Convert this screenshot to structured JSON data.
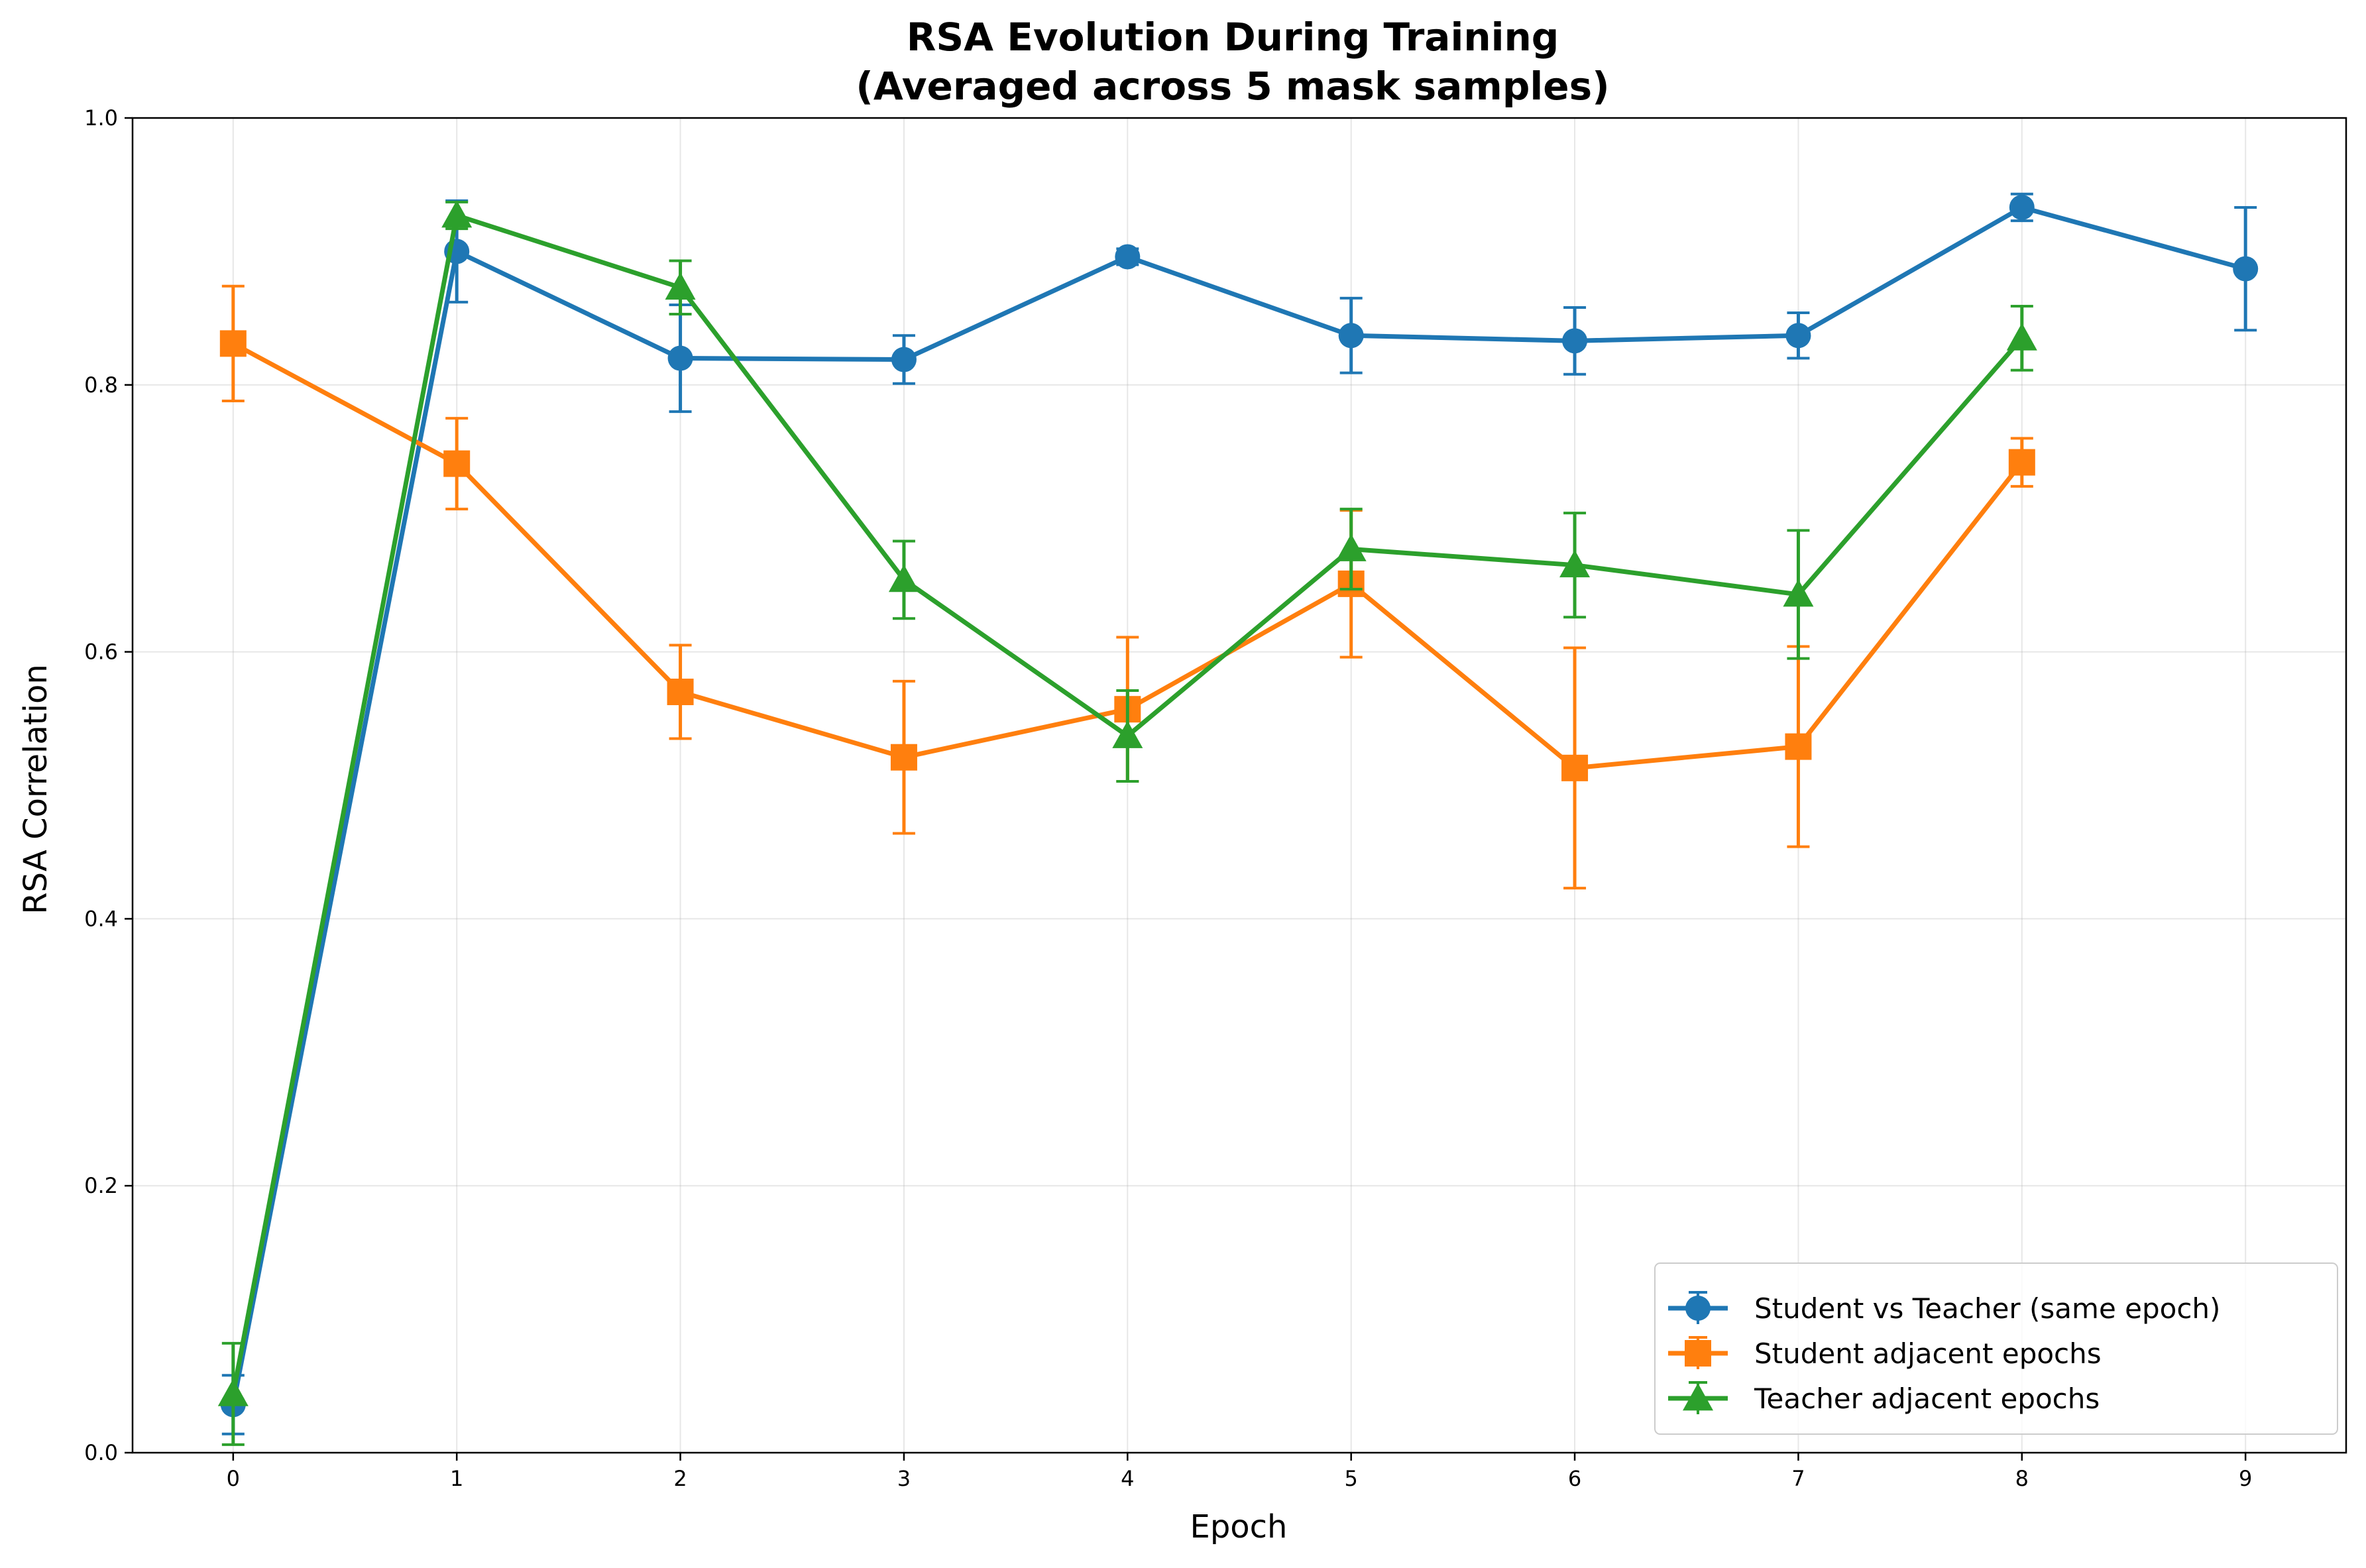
{
  "chart_data": {
    "type": "line",
    "title": [
      "RSA Evolution During Training",
      "(Averaged across 5 mask samples)"
    ],
    "xlabel": "Epoch",
    "ylabel": "RSA Correlation",
    "xlim": [
      -0.45,
      9.45
    ],
    "ylim": [
      0.0,
      1.0
    ],
    "xticks": [
      0,
      1,
      2,
      3,
      4,
      5,
      6,
      7,
      8,
      9
    ],
    "yticks": [
      0.0,
      0.2,
      0.4,
      0.6,
      0.8,
      1.0
    ],
    "ytick_labels": [
      "0.0",
      "0.2",
      "0.4",
      "0.6",
      "0.8",
      "1.0"
    ],
    "grid": true,
    "legend_position": "lower-right",
    "series": [
      {
        "name": "Student vs Teacher (same epoch)",
        "color": "#1f77b4",
        "marker": "circle",
        "x": [
          0,
          1,
          2,
          3,
          4,
          5,
          6,
          7,
          8,
          9
        ],
        "y": [
          0.036,
          0.9,
          0.82,
          0.819,
          0.896,
          0.837,
          0.833,
          0.837,
          0.933,
          0.887
        ],
        "err": [
          0.022,
          0.038,
          0.04,
          0.018,
          0.006,
          0.028,
          0.025,
          0.017,
          0.01,
          0.046
        ]
      },
      {
        "name": "Student adjacent epochs",
        "color": "#ff7f0e",
        "marker": "square",
        "x": [
          0,
          1,
          2,
          3,
          4,
          5,
          6,
          7,
          8
        ],
        "y": [
          0.831,
          0.741,
          0.57,
          0.521,
          0.557,
          0.651,
          0.513,
          0.529,
          0.742
        ],
        "err": [
          0.043,
          0.034,
          0.035,
          0.057,
          0.054,
          0.055,
          0.09,
          0.075,
          0.018
        ]
      },
      {
        "name": "Teacher adjacent epochs",
        "color": "#2ca02c",
        "marker": "triangle",
        "x": [
          0,
          1,
          2,
          3,
          4,
          5,
          6,
          7,
          8
        ],
        "y": [
          0.044,
          0.927,
          0.873,
          0.654,
          0.537,
          0.677,
          0.665,
          0.643,
          0.835
        ],
        "err": [
          0.038,
          0.01,
          0.02,
          0.029,
          0.034,
          0.03,
          0.039,
          0.048,
          0.024
        ]
      }
    ]
  }
}
